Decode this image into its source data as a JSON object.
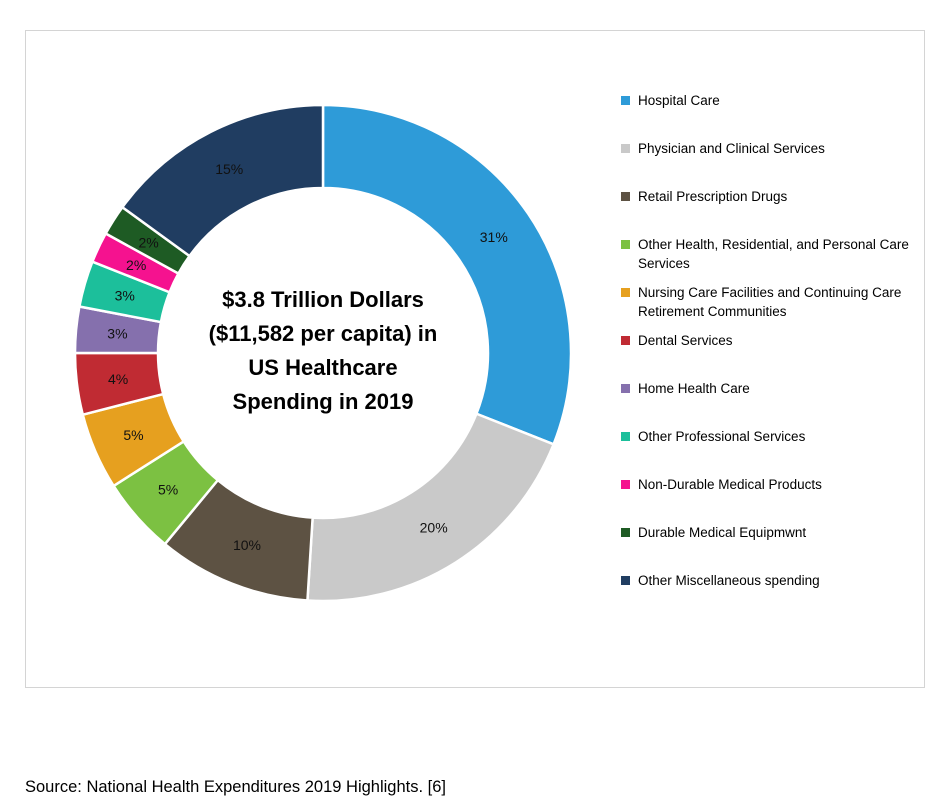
{
  "source": "Source: National Health Expenditures 2019 Highlights. [6]",
  "chart_data": {
    "type": "pie",
    "donut": true,
    "start_angle_deg": 0,
    "direction": "clockwise",
    "legend_position": "right",
    "grid": false,
    "center_label_lines": [
      "$3.8 Trillion Dollars",
      "($11,582 per capita) in",
      "US Healthcare",
      "Spending in 2019"
    ],
    "slices": [
      {
        "label": "Hospital Care",
        "value": 31,
        "display": "31%",
        "color": "#2E9BD8"
      },
      {
        "label": "Physician and Clinical Services",
        "value": 20,
        "display": "20%",
        "color": "#C9C9C9"
      },
      {
        "label": "Retail Prescription Drugs",
        "value": 10,
        "display": "10%",
        "color": "#5D5243"
      },
      {
        "label": "Other Health, Residential, and Personal Care Services",
        "value": 5,
        "display": "5%",
        "color": "#7CC142"
      },
      {
        "label": "Nursing Care Facilities and Continuing Care Retirement Communities",
        "value": 5,
        "display": "5%",
        "color": "#E6A01F"
      },
      {
        "label": "Dental Services",
        "value": 4,
        "display": "4%",
        "color": "#C02B33"
      },
      {
        "label": "Home Health Care",
        "value": 3,
        "display": "3%",
        "color": "#8570AD"
      },
      {
        "label": "Other Professional Services",
        "value": 3,
        "display": "3%",
        "color": "#1CBF9B"
      },
      {
        "label": "Non-Durable Medical Products",
        "value": 2,
        "display": "2%",
        "color": "#F5128F"
      },
      {
        "label": "Durable Medical Equipmwnt",
        "value": 2,
        "display": "2%",
        "color": "#1E5B24"
      },
      {
        "label": "Other Miscellaneous spending",
        "value": 15,
        "display": "15%",
        "color": "#203D61"
      }
    ]
  }
}
